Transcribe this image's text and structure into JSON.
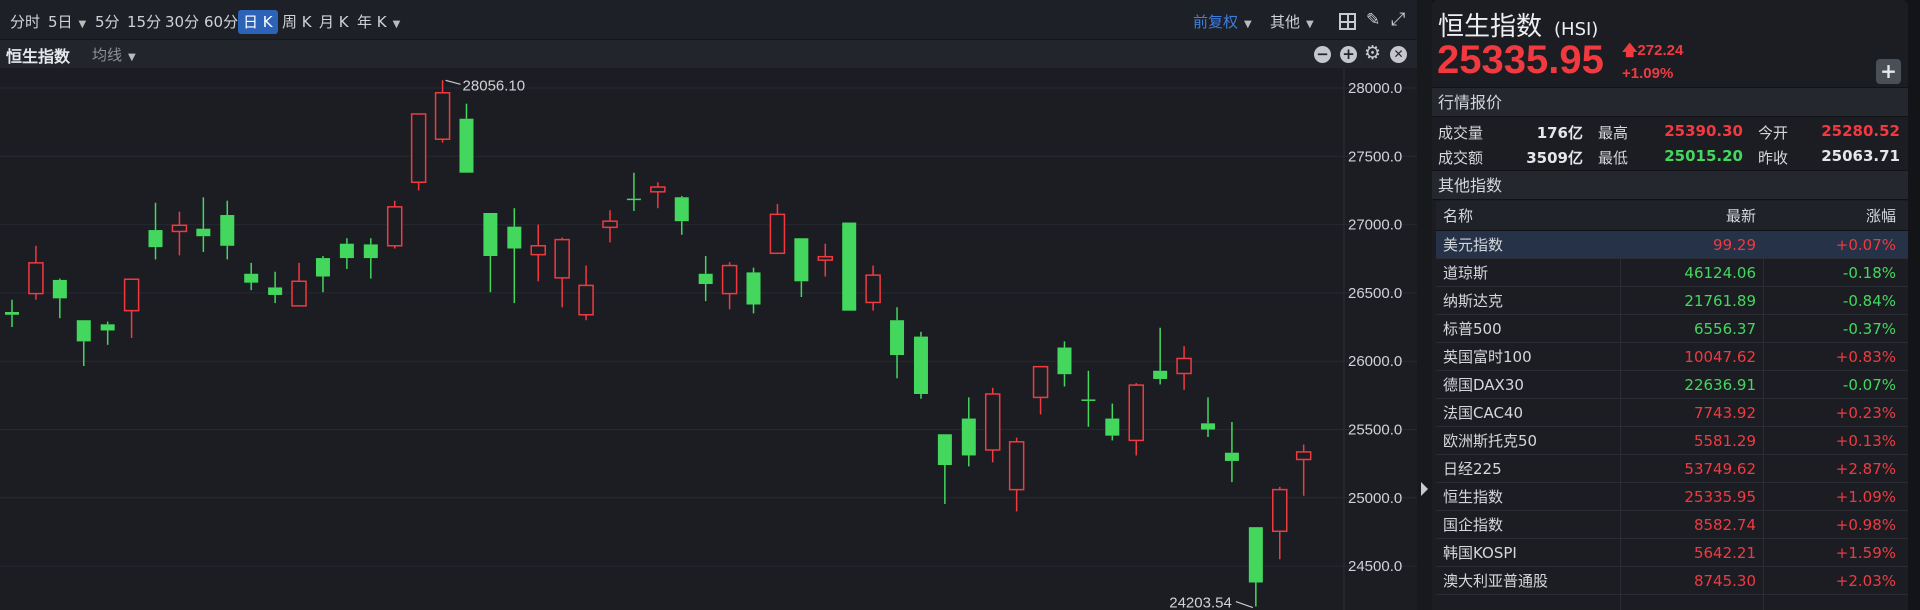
{
  "toolbar": {
    "periods": [
      {
        "label": "分时",
        "dropdown": false
      },
      {
        "label": "5日",
        "dropdown": true
      },
      {
        "label": "5分",
        "dropdown": false
      },
      {
        "label": "15分",
        "dropdown": false
      },
      {
        "label": "30分",
        "dropdown": false
      },
      {
        "label": "60分",
        "dropdown": false
      },
      {
        "label": "日 K",
        "dropdown": false,
        "selected": true
      },
      {
        "label": "周 K",
        "dropdown": false
      },
      {
        "label": "月 K",
        "dropdown": false
      },
      {
        "label": "年 K",
        "dropdown": true
      }
    ],
    "adjust": "前复权",
    "other": "其他",
    "icons": [
      "layout-grid-icon",
      "brush-icon",
      "fullscreen-icon"
    ]
  },
  "chart_header": {
    "symbol": "恒生指数",
    "ma": "均线",
    "icons": [
      "zoom-out-icon",
      "zoom-in-icon",
      "gear-icon",
      "close-icon"
    ]
  },
  "chart_data": {
    "type": "candlestick",
    "ylim": [
      24150,
      28150
    ],
    "yticks": [
      "28000.0",
      "27500.0",
      "27000.0",
      "26500.0",
      "26000.0",
      "25500.0",
      "25000.0",
      "24500.0"
    ],
    "grid": true,
    "up_color": "#f03a40",
    "down_color": "#43d85d",
    "annotations": {
      "high": "28056.10",
      "low": "24203.54"
    },
    "ohlc": [
      [
        26360,
        26450,
        26250,
        26340
      ],
      [
        26495,
        26845,
        26450,
        26720
      ],
      [
        26595,
        26605,
        26315,
        26460
      ],
      [
        26300,
        26300,
        25965,
        26145
      ],
      [
        26270,
        26290,
        26120,
        26225
      ],
      [
        26370,
        26600,
        26170,
        26600
      ],
      [
        26960,
        27160,
        26745,
        26835
      ],
      [
        26950,
        27095,
        26775,
        26995
      ],
      [
        26970,
        27200,
        26800,
        26915
      ],
      [
        27070,
        27175,
        26745,
        26845
      ],
      [
        26640,
        26720,
        26520,
        26575
      ],
      [
        26540,
        26655,
        26425,
        26485
      ],
      [
        26405,
        26720,
        26405,
        26585
      ],
      [
        26755,
        26770,
        26505,
        26620
      ],
      [
        26860,
        26900,
        26675,
        26755
      ],
      [
        26855,
        26900,
        26605,
        26755
      ],
      [
        26845,
        27175,
        26825,
        27130
      ],
      [
        27310,
        27810,
        27250,
        27810
      ],
      [
        27625,
        28056.1,
        27600,
        27965
      ],
      [
        27775,
        27885,
        27380,
        27380
      ],
      [
        27085,
        27085,
        26505,
        26770
      ],
      [
        26985,
        27120,
        26425,
        26825
      ],
      [
        26780,
        27000,
        26585,
        26845
      ],
      [
        26610,
        26905,
        26395,
        26890
      ],
      [
        26340,
        26700,
        26300,
        26555
      ],
      [
        26980,
        27105,
        26870,
        27025
      ],
      [
        27190,
        27380,
        27100,
        27180
      ],
      [
        27240,
        27310,
        27120,
        27275
      ],
      [
        27200,
        27210,
        26925,
        27025
      ],
      [
        26640,
        26770,
        26440,
        26565
      ],
      [
        26495,
        26725,
        26380,
        26700
      ],
      [
        26650,
        26685,
        26350,
        26415
      ],
      [
        26790,
        27150,
        26790,
        27075
      ],
      [
        26900,
        26900,
        26470,
        26585
      ],
      [
        26740,
        26860,
        26620,
        26765
      ],
      [
        27015,
        27015,
        26370,
        26370
      ],
      [
        26430,
        26700,
        26370,
        26630
      ],
      [
        26300,
        26395,
        25875,
        26045
      ],
      [
        26180,
        26215,
        25725,
        25760
      ],
      [
        25465,
        25465,
        24955,
        25240
      ],
      [
        25580,
        25735,
        25230,
        25310
      ],
      [
        25350,
        25805,
        25260,
        25760
      ],
      [
        25060,
        25440,
        24900,
        25410
      ],
      [
        25735,
        25960,
        25610,
        25960
      ],
      [
        26100,
        26145,
        25815,
        25905
      ],
      [
        25720,
        25930,
        25520,
        25710
      ],
      [
        25580,
        25690,
        25420,
        25455
      ],
      [
        25420,
        25840,
        25310,
        25825
      ],
      [
        25930,
        26245,
        25830,
        25870
      ],
      [
        25910,
        26110,
        25790,
        26020
      ],
      [
        25545,
        25735,
        25445,
        25500
      ],
      [
        25330,
        25555,
        25115,
        25270
      ],
      [
        24785,
        24785,
        24203.54,
        24380
      ],
      [
        24755,
        25080,
        24550,
        25060
      ],
      [
        25280.52,
        25390.3,
        25015.2,
        25335.95
      ]
    ]
  },
  "quote": {
    "name": "恒生指数",
    "code": "(HSI)",
    "price": "25335.95",
    "change": "272.24",
    "change_pct": "+1.09%",
    "add_label": "+",
    "section_title": "行情报价",
    "rows": [
      [
        {
          "label": "成交量",
          "value": "176亿",
          "color": "neutral"
        },
        {
          "label": "最高",
          "value": "25390.30",
          "color": "red"
        },
        {
          "label": "今开",
          "value": "25280.52",
          "color": "red"
        }
      ],
      [
        {
          "label": "成交额",
          "value": "3509亿",
          "color": "neutral"
        },
        {
          "label": "最低",
          "value": "25015.20",
          "color": "green"
        },
        {
          "label": "昨收",
          "value": "25063.71",
          "color": "neutral"
        }
      ]
    ]
  },
  "other_indices": {
    "title": "其他指数",
    "columns": [
      "名称",
      "最新",
      "涨幅"
    ],
    "rows": [
      {
        "name": "美元指数",
        "last": "99.29",
        "chg": "+0.07%",
        "dir": "up",
        "highlighted": true
      },
      {
        "name": "道琼斯",
        "last": "46124.06",
        "chg": "-0.18%",
        "dir": "down"
      },
      {
        "name": "纳斯达克",
        "last": "21761.89",
        "chg": "-0.84%",
        "dir": "down"
      },
      {
        "name": "标普500",
        "last": "6556.37",
        "chg": "-0.37%",
        "dir": "down"
      },
      {
        "name": "英国富时100",
        "last": "10047.62",
        "chg": "+0.83%",
        "dir": "up"
      },
      {
        "name": "德国DAX30",
        "last": "22636.91",
        "chg": "-0.07%",
        "dir": "down"
      },
      {
        "name": "法国CAC40",
        "last": "7743.92",
        "chg": "+0.23%",
        "dir": "up"
      },
      {
        "name": "欧洲斯托克50",
        "last": "5581.29",
        "chg": "+0.13%",
        "dir": "up"
      },
      {
        "name": "日经225",
        "last": "53749.62",
        "chg": "+2.87%",
        "dir": "up"
      },
      {
        "name": "恒生指数",
        "last": "25335.95",
        "chg": "+1.09%",
        "dir": "up"
      },
      {
        "name": "国企指数",
        "last": "8582.74",
        "chg": "+0.98%",
        "dir": "up"
      },
      {
        "name": "韩国KOSPI",
        "last": "5642.21",
        "chg": "+1.59%",
        "dir": "up"
      },
      {
        "name": "澳大利亚普通股",
        "last": "8745.30",
        "chg": "+2.03%",
        "dir": "up"
      }
    ]
  }
}
